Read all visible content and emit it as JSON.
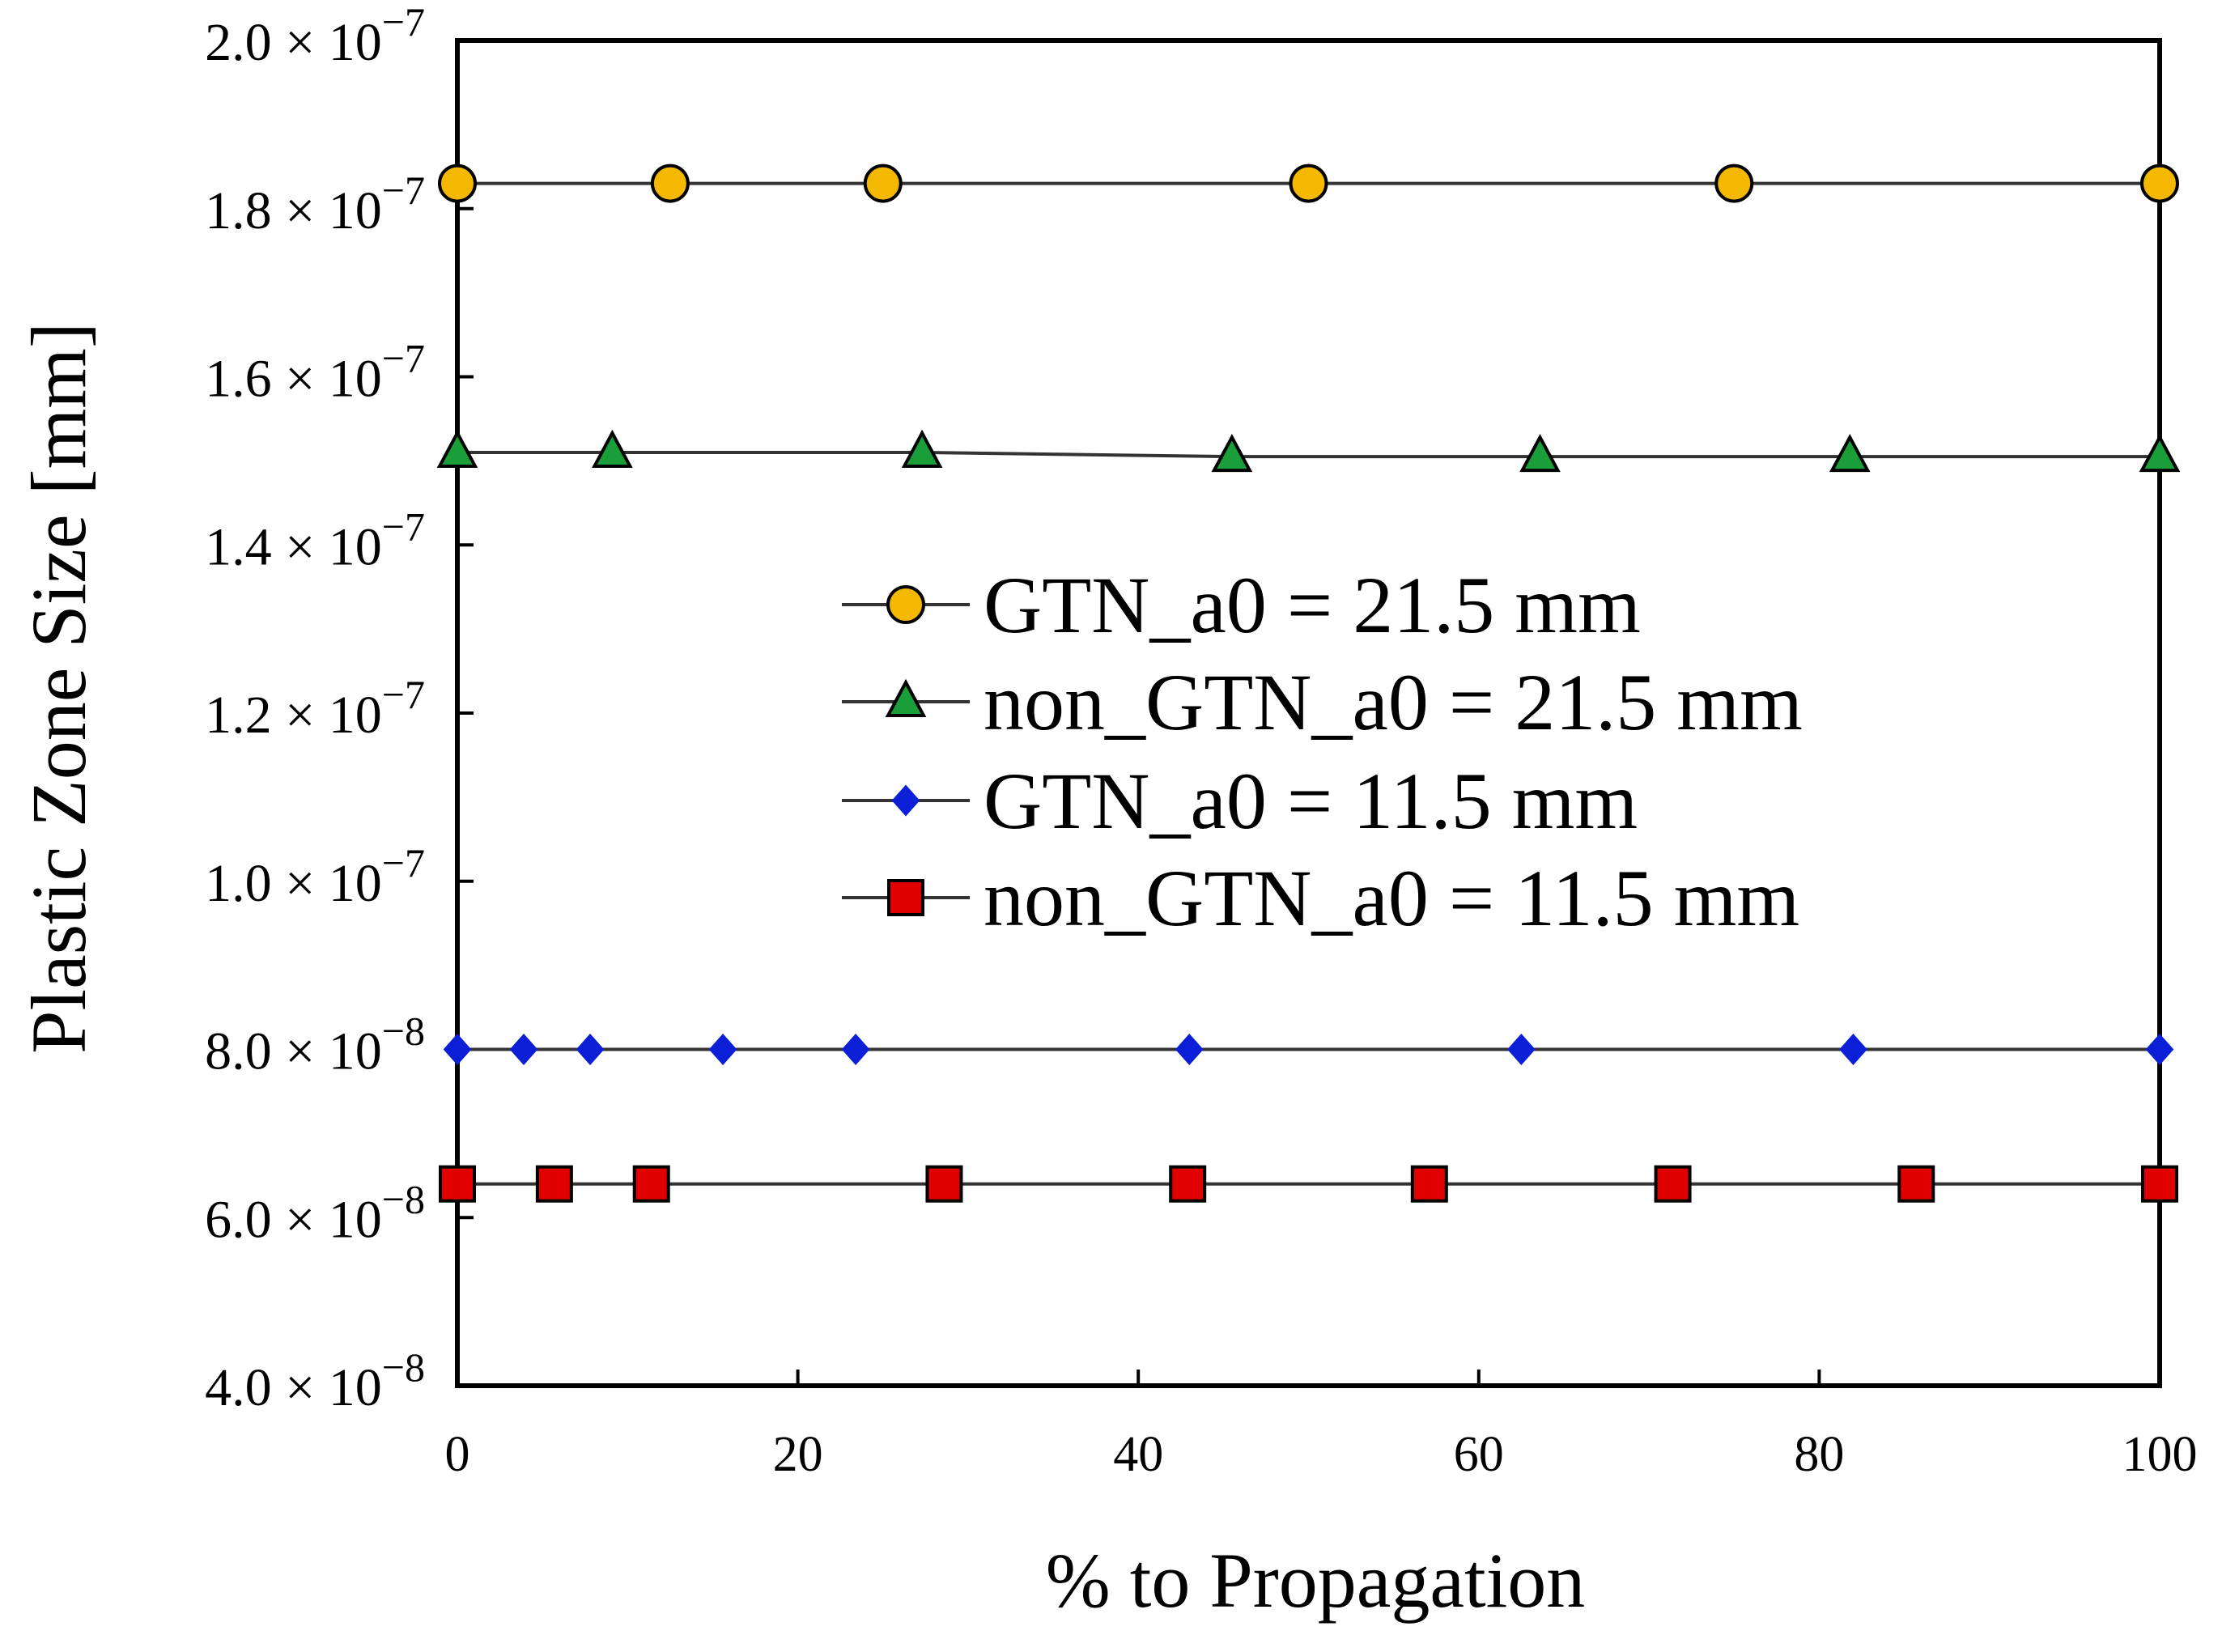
{
  "chart_data": {
    "type": "line",
    "title": "",
    "xlabel": "% to Propagation",
    "ylabel": "Plastic Zone Size [mm]",
    "xlim": [
      0,
      100
    ],
    "ylim": [
      4e-08,
      2e-07
    ],
    "x_ticks": [
      {
        "value": 0,
        "label": "0"
      },
      {
        "value": 20,
        "label": "20"
      },
      {
        "value": 40,
        "label": "40"
      },
      {
        "value": 60,
        "label": "60"
      },
      {
        "value": 80,
        "label": "80"
      },
      {
        "value": 100,
        "label": "100"
      }
    ],
    "y_ticks": [
      {
        "value": 4e-08,
        "mantissa": "4.0 × 10",
        "exponent": "−8"
      },
      {
        "value": 6e-08,
        "mantissa": "6.0 × 10",
        "exponent": "−8"
      },
      {
        "value": 8e-08,
        "mantissa": "8.0 × 10",
        "exponent": "−8"
      },
      {
        "value": 1e-07,
        "mantissa": "1.0 × 10",
        "exponent": "−7"
      },
      {
        "value": 1.2e-07,
        "mantissa": "1.2 × 10",
        "exponent": "−7"
      },
      {
        "value": 1.4e-07,
        "mantissa": "1.4 × 10",
        "exponent": "−7"
      },
      {
        "value": 1.6e-07,
        "mantissa": "1.6 × 10",
        "exponent": "−7"
      },
      {
        "value": 1.8e-07,
        "mantissa": "1.8 × 10",
        "exponent": "−7"
      },
      {
        "value": 2e-07,
        "mantissa": "2.0 × 10",
        "exponent": "−7"
      }
    ],
    "grid": false,
    "legend_position": "center-right",
    "series": [
      {
        "name": "GTN_a0 = 21.5 mm",
        "marker": "circle",
        "color": "#f5b800",
        "x": [
          0,
          12.5,
          25,
          50,
          75,
          100
        ],
        "y": [
          1.83e-07,
          1.83e-07,
          1.83e-07,
          1.83e-07,
          1.83e-07,
          1.83e-07
        ]
      },
      {
        "name": "non_GTN_a0 = 21.5 mm",
        "marker": "triangle",
        "color": "#1a9e3a",
        "x": [
          0,
          9.1,
          27.3,
          45.5,
          63.6,
          81.8,
          100
        ],
        "y": [
          1.51e-07,
          1.51e-07,
          1.51e-07,
          1.505e-07,
          1.505e-07,
          1.505e-07,
          1.505e-07
        ]
      },
      {
        "name": "GTN_a0 = 11.5 mm",
        "marker": "diamond",
        "color": "#0a1fd6",
        "x": [
          0,
          3.9,
          7.8,
          15.6,
          23.4,
          43,
          62.5,
          82,
          100
        ],
        "y": [
          8e-08,
          8e-08,
          8e-08,
          8e-08,
          8e-08,
          8e-08,
          8e-08,
          8e-08,
          8e-08
        ]
      },
      {
        "name": "non_GTN_a0 = 11.5 mm",
        "marker": "square",
        "color": "#e00000",
        "x": [
          0,
          5.7,
          11.4,
          28.6,
          42.9,
          57.1,
          71.4,
          85.7,
          100
        ],
        "y": [
          6.4e-08,
          6.4e-08,
          6.4e-08,
          6.4e-08,
          6.4e-08,
          6.4e-08,
          6.4e-08,
          6.4e-08,
          6.4e-08
        ]
      }
    ]
  }
}
